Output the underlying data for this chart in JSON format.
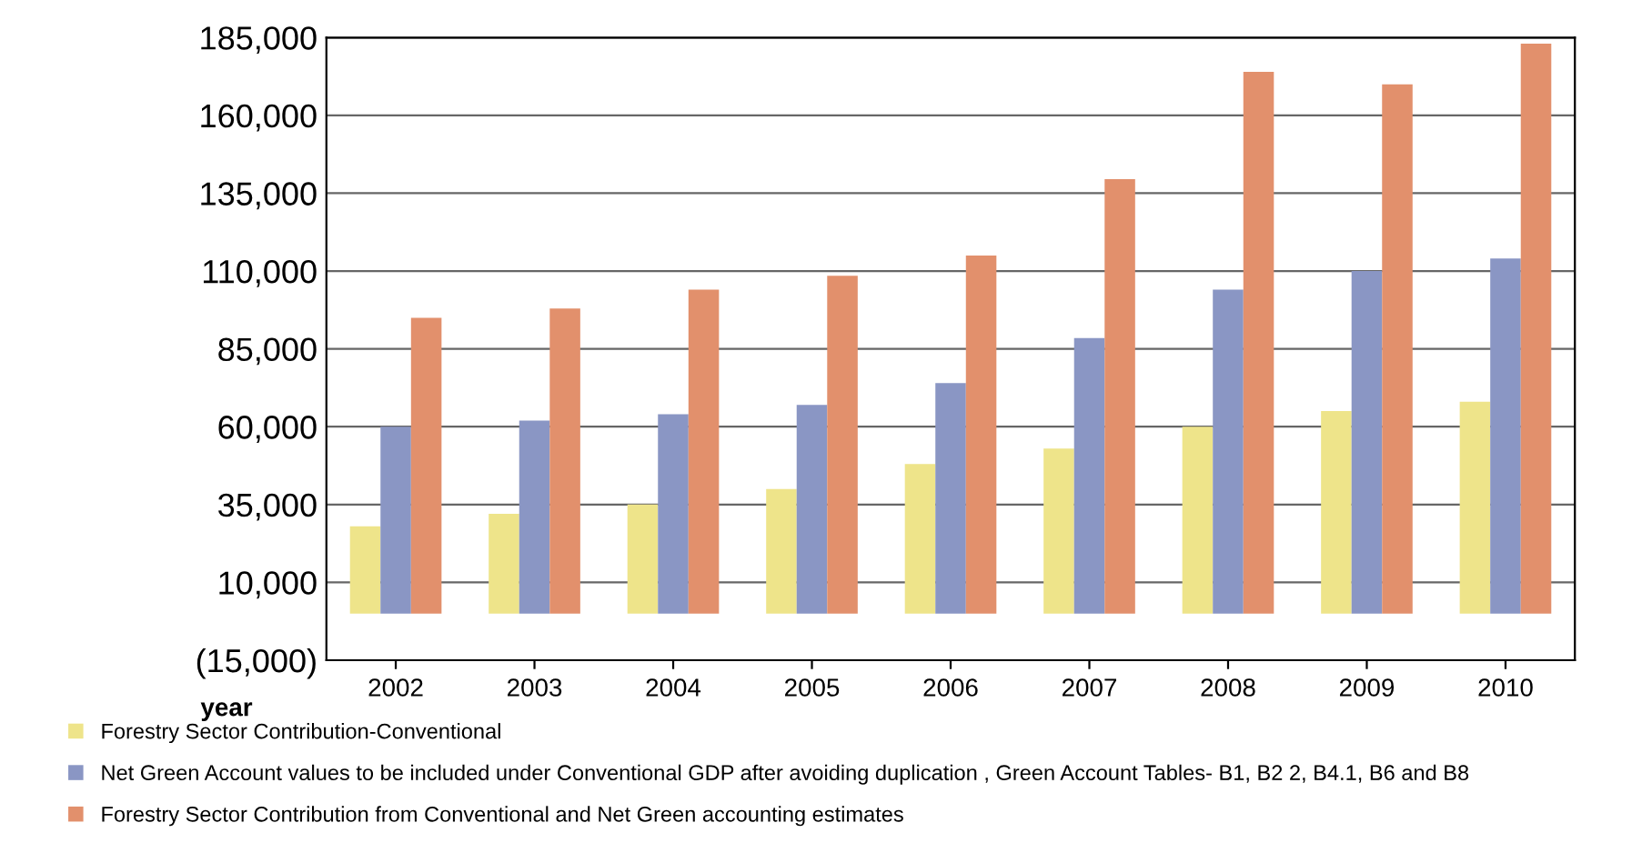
{
  "chart_data": {
    "type": "bar",
    "xlabel": "year",
    "categories": [
      "2002",
      "2003",
      "2004",
      "2005",
      "2006",
      "2007",
      "2008",
      "2009",
      "2010"
    ],
    "series": [
      {
        "name": "Forestry Sector Contribution-Conventional",
        "color": "#eee48a",
        "values": [
          28000,
          32000,
          35000,
          40000,
          48000,
          53000,
          60000,
          65000,
          68000
        ]
      },
      {
        "name": "Net Green Account values to be included under Conventional GDP after avoiding duplication , Green Account Tables- B1, B2 2, B4.1, B6 and B8",
        "color": "#8a96c4",
        "values": [
          60000,
          62000,
          64000,
          67000,
          74000,
          88500,
          104000,
          110000,
          114000
        ]
      },
      {
        "name": "Forestry Sector Contribution from Conventional and Net Green accounting estimates",
        "color": "#e2906c",
        "values": [
          95000,
          98000,
          104000,
          108500,
          115000,
          139500,
          174000,
          170000,
          183000
        ]
      }
    ],
    "ylim": [
      -15000,
      185000
    ],
    "yticks": [
      {
        "value": -15000,
        "label": "(15,000)"
      },
      {
        "value": 10000,
        "label": "10,000"
      },
      {
        "value": 35000,
        "label": "35,000"
      },
      {
        "value": 60000,
        "label": "60,000"
      },
      {
        "value": 85000,
        "label": "85,000"
      },
      {
        "value": 110000,
        "label": "110,000"
      },
      {
        "value": 135000,
        "label": "135,000"
      },
      {
        "value": 160000,
        "label": "160,000"
      },
      {
        "value": 185000,
        "label": "185,000"
      }
    ],
    "grid": "y",
    "legend": "bottom"
  }
}
